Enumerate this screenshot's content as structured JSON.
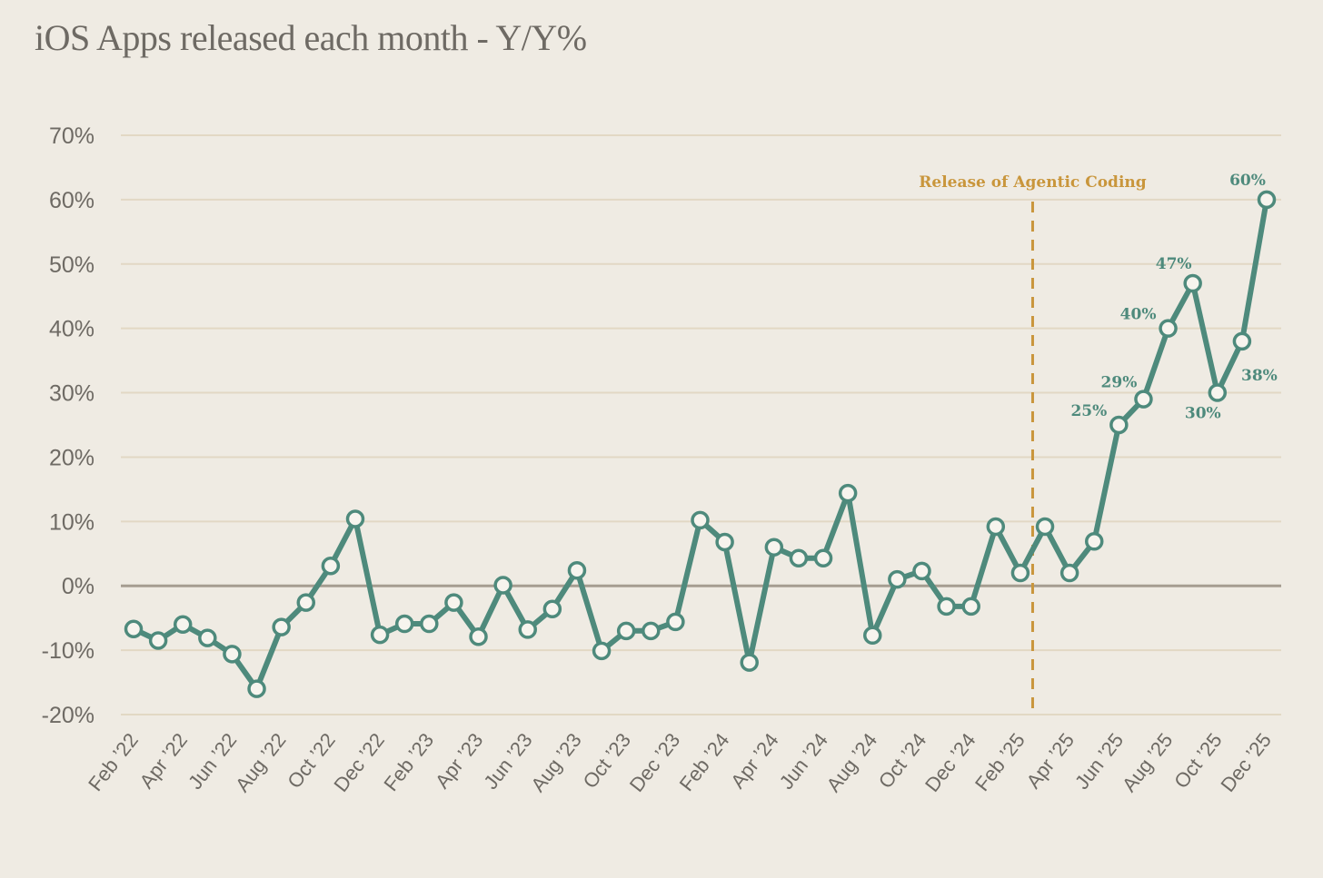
{
  "chart_data": {
    "type": "line",
    "title": "iOS Apps released each month - Y/Y%",
    "xlabel": "",
    "ylabel": "",
    "ylim": [
      -20,
      70
    ],
    "yticks": [
      70,
      60,
      50,
      40,
      30,
      20,
      10,
      0,
      -10,
      -20
    ],
    "ytick_labels": [
      "70%",
      "60%",
      "50%",
      "40%",
      "30%",
      "20%",
      "10%",
      "0%",
      "-10%",
      "-20%"
    ],
    "x_tick_labels": [
      "Feb ’22",
      "Apr ’22",
      "Jun ’22",
      "Aug ’22",
      "Oct ’22",
      "Dec ’22",
      "Feb ’23",
      "Apr ’23",
      "Jun ’23",
      "Aug ’23",
      "Oct ’23",
      "Dec ’23",
      "Feb ’24",
      "Apr ’24",
      "Jun ’24",
      "Aug ’24",
      "Oct ’24",
      "Dec ’24",
      "Feb ’25",
      "Apr ’25",
      "Jun ’25",
      "Aug ’25",
      "Oct ’25",
      "Dec ’25"
    ],
    "grid": true,
    "line_color": "#4e8a7c",
    "zero_line_color": "#a59d91",
    "series": [
      {
        "values": [
          -6.7,
          -8.5,
          -6.0,
          -8.1,
          -10.6,
          -16.0,
          -6.4,
          -2.6,
          3.1,
          10.4,
          -7.6,
          -5.9,
          -5.9,
          -2.6,
          -7.9,
          0.1,
          -6.8,
          -3.6,
          2.4,
          -10.1,
          -7.0,
          -7.0,
          -5.6,
          10.2,
          6.8,
          -11.9,
          6.0,
          4.3,
          4.3,
          14.4,
          -7.7,
          1.0,
          2.3,
          -3.2,
          -3.2,
          9.2,
          2.0,
          9.2,
          2.0,
          6.9,
          25,
          29,
          40,
          47,
          30,
          38,
          60
        ]
      }
    ],
    "data_labels": [
      {
        "index": 40,
        "text": "25%"
      },
      {
        "index": 41,
        "text": "29%"
      },
      {
        "index": 42,
        "text": "40%"
      },
      {
        "index": 43,
        "text": "47%"
      },
      {
        "index": 44,
        "text": "30%"
      },
      {
        "index": 45,
        "text": "38%"
      },
      {
        "index": 46,
        "text": "60%"
      }
    ],
    "annotations": [
      {
        "text": "Release of Agentic Coding",
        "between_index": [
          36,
          37
        ],
        "style": "dashed vertical line",
        "color": "#c9963c"
      }
    ]
  }
}
